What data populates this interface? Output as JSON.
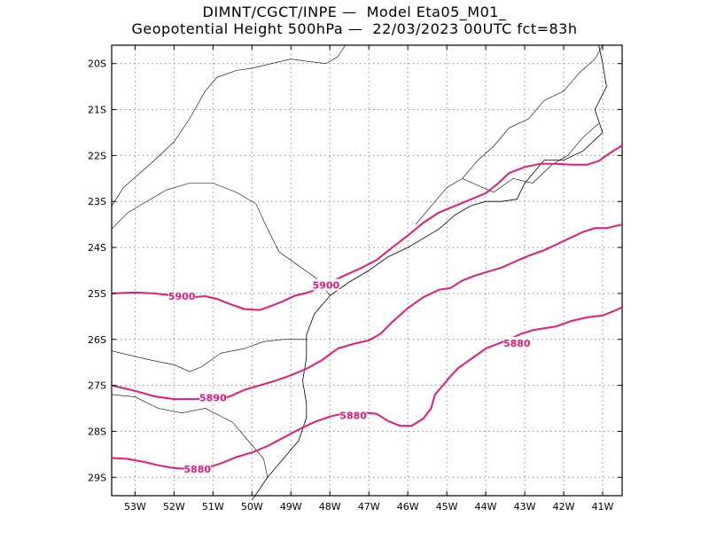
{
  "title": {
    "line1": "DIMNT/CGCT/INPE —  Model Eta05_M01_",
    "line2": "Geopotential Height 500hPa —  22/03/2023 00UTC fct=83h"
  },
  "chart_data": {
    "type": "contour",
    "xlim": [
      -53.6,
      -40.5
    ],
    "ylim": [
      -29.4,
      -19.6
    ],
    "x_ticks": [
      -53,
      -52,
      -51,
      -50,
      -49,
      -48,
      -47,
      -46,
      -45,
      -44,
      -43,
      -42,
      -41
    ],
    "x_tick_labels": [
      "53W",
      "52W",
      "51W",
      "50W",
      "49W",
      "48W",
      "47W",
      "46W",
      "45W",
      "44W",
      "43W",
      "42W",
      "41W"
    ],
    "y_ticks": [
      -20,
      -21,
      -22,
      -23,
      -24,
      -25,
      -26,
      -27,
      -28,
      -29
    ],
    "y_tick_labels": [
      "20S",
      "21S",
      "22S",
      "23S",
      "24S",
      "25S",
      "26S",
      "27S",
      "28S",
      "29S"
    ],
    "grid": true,
    "contour_color": "#e8177a",
    "coast_color": "#000000",
    "contours": [
      {
        "label": "5900",
        "line_labels": [
          {
            "text": "5900",
            "x": -51.8,
            "y": -25.06
          },
          {
            "text": "5900",
            "x": -48.1,
            "y": -24.82
          }
        ],
        "points": [
          [
            -53.6,
            -25.0
          ],
          [
            -53.0,
            -24.98
          ],
          [
            -52.5,
            -25.0
          ],
          [
            -52.0,
            -25.05
          ],
          [
            -51.5,
            -25.08
          ],
          [
            -51.2,
            -25.06
          ],
          [
            -50.9,
            -25.12
          ],
          [
            -50.6,
            -25.22
          ],
          [
            -50.2,
            -25.34
          ],
          [
            -49.8,
            -25.36
          ],
          [
            -49.5,
            -25.27
          ],
          [
            -49.2,
            -25.17
          ],
          [
            -48.9,
            -25.05
          ],
          [
            -48.6,
            -24.99
          ],
          [
            -48.3,
            -24.9
          ],
          [
            -48.0,
            -24.76
          ],
          [
            -47.6,
            -24.6
          ],
          [
            -47.2,
            -24.45
          ],
          [
            -46.8,
            -24.27
          ],
          [
            -46.4,
            -24.0
          ],
          [
            -46.0,
            -23.74
          ],
          [
            -45.6,
            -23.46
          ],
          [
            -45.2,
            -23.24
          ],
          [
            -44.8,
            -23.1
          ],
          [
            -44.4,
            -22.96
          ],
          [
            -44.0,
            -22.82
          ],
          [
            -43.7,
            -22.62
          ],
          [
            -43.4,
            -22.38
          ],
          [
            -43.0,
            -22.25
          ],
          [
            -42.6,
            -22.18
          ],
          [
            -42.2,
            -22.18
          ],
          [
            -41.8,
            -22.2
          ],
          [
            -41.4,
            -22.2
          ],
          [
            -41.1,
            -22.12
          ],
          [
            -40.8,
            -21.94
          ],
          [
            -40.5,
            -21.78
          ]
        ]
      },
      {
        "label": "5890",
        "line_labels": [
          {
            "text": "5890",
            "x": -51.0,
            "y": -27.27
          }
        ],
        "points": [
          [
            -53.6,
            -27.0
          ],
          [
            -53.0,
            -27.12
          ],
          [
            -52.5,
            -27.24
          ],
          [
            -52.0,
            -27.3
          ],
          [
            -51.5,
            -27.3
          ],
          [
            -51.0,
            -27.28
          ],
          [
            -50.6,
            -27.25
          ],
          [
            -50.2,
            -27.1
          ],
          [
            -49.8,
            -27.0
          ],
          [
            -49.4,
            -26.9
          ],
          [
            -49.0,
            -26.78
          ],
          [
            -48.6,
            -26.64
          ],
          [
            -48.2,
            -26.45
          ],
          [
            -47.8,
            -26.2
          ],
          [
            -47.4,
            -26.1
          ],
          [
            -47.0,
            -26.02
          ],
          [
            -46.7,
            -25.88
          ],
          [
            -46.4,
            -25.62
          ],
          [
            -46.0,
            -25.32
          ],
          [
            -45.6,
            -25.08
          ],
          [
            -45.2,
            -24.92
          ],
          [
            -44.9,
            -24.88
          ],
          [
            -44.6,
            -24.72
          ],
          [
            -44.3,
            -24.62
          ],
          [
            -44.0,
            -24.54
          ],
          [
            -43.6,
            -24.44
          ],
          [
            -43.2,
            -24.29
          ],
          [
            -42.9,
            -24.18
          ],
          [
            -42.5,
            -24.06
          ],
          [
            -42.1,
            -23.9
          ],
          [
            -41.8,
            -23.78
          ],
          [
            -41.5,
            -23.66
          ],
          [
            -41.2,
            -23.58
          ],
          [
            -40.9,
            -23.58
          ],
          [
            -40.5,
            -23.5
          ]
        ]
      },
      {
        "label": "5880",
        "line_labels": [
          {
            "text": "5880",
            "x": -51.4,
            "y": -28.82
          },
          {
            "text": "5880",
            "x": -47.4,
            "y": -27.65
          },
          {
            "text": "5880",
            "x": -43.2,
            "y": -26.08
          }
        ],
        "points": [
          [
            -53.6,
            -28.58
          ],
          [
            -53.2,
            -28.6
          ],
          [
            -52.8,
            -28.66
          ],
          [
            -52.4,
            -28.74
          ],
          [
            -52.0,
            -28.8
          ],
          [
            -51.6,
            -28.82
          ],
          [
            -51.2,
            -28.8
          ],
          [
            -50.8,
            -28.7
          ],
          [
            -50.4,
            -28.56
          ],
          [
            -50.0,
            -28.46
          ],
          [
            -49.6,
            -28.32
          ],
          [
            -49.2,
            -28.14
          ],
          [
            -48.8,
            -27.96
          ],
          [
            -48.4,
            -27.8
          ],
          [
            -48.0,
            -27.68
          ],
          [
            -47.6,
            -27.6
          ],
          [
            -47.2,
            -27.58
          ],
          [
            -46.8,
            -27.62
          ],
          [
            -46.5,
            -27.78
          ],
          [
            -46.2,
            -27.88
          ],
          [
            -45.9,
            -27.88
          ],
          [
            -45.6,
            -27.72
          ],
          [
            -45.4,
            -27.5
          ],
          [
            -45.3,
            -27.2
          ],
          [
            -45.1,
            -27.0
          ],
          [
            -44.9,
            -26.8
          ],
          [
            -44.7,
            -26.62
          ],
          [
            -44.5,
            -26.5
          ],
          [
            -44.3,
            -26.38
          ],
          [
            -44.0,
            -26.2
          ],
          [
            -43.7,
            -26.1
          ],
          [
            -43.4,
            -26.0
          ],
          [
            -43.1,
            -25.88
          ],
          [
            -42.8,
            -25.8
          ],
          [
            -42.5,
            -25.76
          ],
          [
            -42.2,
            -25.72
          ],
          [
            -41.8,
            -25.6
          ],
          [
            -41.4,
            -25.52
          ],
          [
            -41.0,
            -25.48
          ],
          [
            -40.7,
            -25.38
          ],
          [
            -40.5,
            -25.3
          ]
        ]
      }
    ],
    "coastline": [
      [
        -41.1,
        -19.6
      ],
      [
        -41.0,
        -20.0
      ],
      [
        -40.9,
        -20.5
      ],
      [
        -41.2,
        -21.0
      ],
      [
        -41.0,
        -21.5
      ],
      [
        -41.5,
        -21.9
      ],
      [
        -42.0,
        -22.1
      ],
      [
        -42.5,
        -22.1
      ],
      [
        -43.0,
        -22.6
      ],
      [
        -43.2,
        -22.95
      ],
      [
        -43.6,
        -23.0
      ],
      [
        -44.0,
        -23.0
      ],
      [
        -44.4,
        -23.1
      ],
      [
        -44.8,
        -23.3
      ],
      [
        -45.2,
        -23.6
      ],
      [
        -45.6,
        -23.8
      ],
      [
        -46.0,
        -24.0
      ],
      [
        -46.5,
        -24.2
      ],
      [
        -47.0,
        -24.5
      ],
      [
        -47.5,
        -24.75
      ],
      [
        -48.0,
        -25.05
      ],
      [
        -48.4,
        -25.45
      ],
      [
        -48.6,
        -25.9
      ],
      [
        -48.6,
        -26.4
      ],
      [
        -48.7,
        -26.9
      ],
      [
        -48.6,
        -27.4
      ],
      [
        -48.6,
        -27.7
      ],
      [
        -48.8,
        -28.2
      ],
      [
        -49.2,
        -28.6
      ],
      [
        -49.6,
        -29.0
      ],
      [
        -50.0,
        -29.5
      ]
    ],
    "borders": [
      [
        [
          -53.6,
          -23.1
        ],
        [
          -53.3,
          -22.7
        ],
        [
          -52.9,
          -22.4
        ],
        [
          -52.5,
          -22.1
        ],
        [
          -52.0,
          -21.7
        ],
        [
          -51.6,
          -21.2
        ],
        [
          -51.2,
          -20.6
        ],
        [
          -50.9,
          -20.3
        ],
        [
          -50.4,
          -20.15
        ],
        [
          -50.0,
          -20.1
        ],
        [
          -49.5,
          -20.0
        ],
        [
          -49.0,
          -19.9
        ],
        [
          -48.6,
          -19.95
        ],
        [
          -48.1,
          -20.0
        ],
        [
          -47.8,
          -19.85
        ],
        [
          -47.6,
          -19.6
        ]
      ],
      [
        [
          -53.6,
          -23.6
        ],
        [
          -53.2,
          -23.25
        ],
        [
          -52.8,
          -23.05
        ],
        [
          -52.2,
          -22.75
        ],
        [
          -51.6,
          -22.6
        ],
        [
          -51.0,
          -22.6
        ],
        [
          -50.4,
          -22.8
        ],
        [
          -49.9,
          -23.05
        ],
        [
          -49.6,
          -23.6
        ],
        [
          -49.3,
          -24.1
        ],
        [
          -48.8,
          -24.4
        ],
        [
          -48.3,
          -24.7
        ],
        [
          -48.0,
          -25.05
        ]
      ],
      [
        [
          -53.6,
          -26.25
        ],
        [
          -53.1,
          -26.35
        ],
        [
          -52.6,
          -26.45
        ],
        [
          -52.0,
          -26.55
        ],
        [
          -51.6,
          -26.7
        ],
        [
          -51.3,
          -26.6
        ],
        [
          -50.8,
          -26.3
        ],
        [
          -50.2,
          -26.2
        ],
        [
          -49.7,
          -26.05
        ],
        [
          -49.2,
          -26.0
        ],
        [
          -48.6,
          -26.0
        ]
      ],
      [
        [
          -53.6,
          -27.2
        ],
        [
          -53.0,
          -27.25
        ],
        [
          -52.4,
          -27.5
        ],
        [
          -51.8,
          -27.6
        ],
        [
          -51.2,
          -27.5
        ],
        [
          -50.5,
          -27.8
        ],
        [
          -50.0,
          -28.3
        ],
        [
          -49.7,
          -28.6
        ],
        [
          -49.6,
          -29.0
        ]
      ],
      [
        [
          -45.8,
          -23.5
        ],
        [
          -45.4,
          -23.1
        ],
        [
          -45.0,
          -22.7
        ],
        [
          -44.6,
          -22.5
        ],
        [
          -44.2,
          -22.65
        ],
        [
          -43.8,
          -22.8
        ],
        [
          -43.3,
          -22.5
        ],
        [
          -42.8,
          -22.6
        ],
        [
          -42.3,
          -22.2
        ],
        [
          -41.9,
          -22.0
        ],
        [
          -41.5,
          -21.6
        ],
        [
          -41.1,
          -21.3
        ]
      ],
      [
        [
          -44.6,
          -22.5
        ],
        [
          -44.2,
          -22.1
        ],
        [
          -43.8,
          -21.8
        ],
        [
          -43.4,
          -21.4
        ],
        [
          -42.9,
          -21.2
        ],
        [
          -42.5,
          -20.8
        ],
        [
          -42.0,
          -20.6
        ],
        [
          -41.6,
          -20.2
        ],
        [
          -41.2,
          -19.9
        ],
        [
          -41.0,
          -19.6
        ]
      ]
    ]
  }
}
